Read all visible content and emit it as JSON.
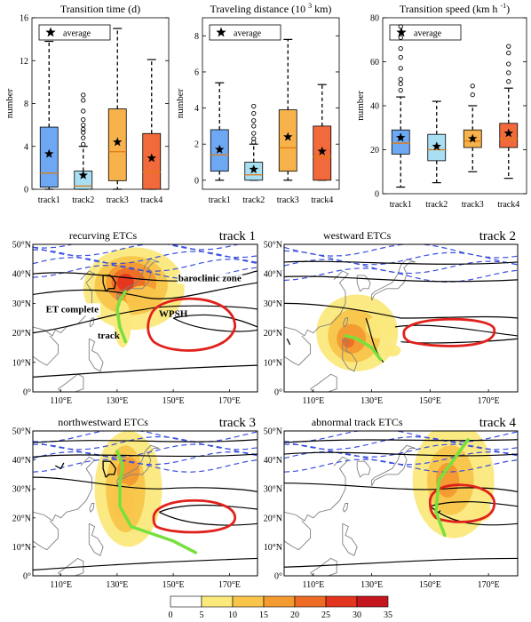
{
  "colors": {
    "track1": "#6ea8f2",
    "track2": "#a8dff2",
    "track3": "#f7b24c",
    "track4": "#f26a3c",
    "median": "#e07a10",
    "whisker": "#000000",
    "contour_black": "#000000",
    "contour_blue": "#3a4fe0",
    "wpsh_red": "#e0211c",
    "track_green": "#78e03c"
  },
  "box_panels": [
    {
      "title": "Transition time (d)",
      "ylabel": "number",
      "legend": "average",
      "yticks": [
        "0",
        "4",
        "8",
        "12",
        "16"
      ],
      "ylim": [
        0,
        16
      ],
      "categories": [
        "track1",
        "track2",
        "track3",
        "track4"
      ],
      "boxes": [
        {
          "min": 0,
          "q1": 0.2,
          "median": 1.5,
          "q3": 5.8,
          "max": 13.8,
          "mean": 3.3,
          "outliers": []
        },
        {
          "min": 0,
          "q1": 0,
          "median": 0.3,
          "q3": 1.7,
          "max": 4.0,
          "mean": 1.3,
          "outliers": [
            4.2,
            4.8,
            5.3,
            5.6,
            6.0,
            6.5,
            7.3,
            8.3,
            8.8
          ]
        },
        {
          "min": 0,
          "q1": 0.8,
          "median": 3.5,
          "q3": 7.5,
          "max": 15.0,
          "mean": 4.4,
          "outliers": []
        },
        {
          "min": 0,
          "q1": 0,
          "median": 1.6,
          "q3": 5.2,
          "max": 12.1,
          "mean": 2.9,
          "outliers": []
        }
      ]
    },
    {
      "title": "Traveling distance (10 3 km)",
      "ylabel": "number",
      "legend": "average",
      "yticks": [
        "0",
        "2",
        "4",
        "6",
        "8"
      ],
      "ylim": [
        -0.5,
        9
      ],
      "categories": [
        "track1",
        "track2",
        "track3",
        "track4"
      ],
      "boxes": [
        {
          "min": 0,
          "q1": 0.5,
          "median": 1.4,
          "q3": 2.8,
          "max": 5.4,
          "mean": 1.7,
          "outliers": []
        },
        {
          "min": 0,
          "q1": 0,
          "median": 0.3,
          "q3": 1.0,
          "max": 2.0,
          "mean": 0.6,
          "outliers": [
            2.1,
            2.3,
            2.6,
            3.0,
            3.3,
            3.7,
            4.1
          ]
        },
        {
          "min": 0,
          "q1": 0.5,
          "median": 1.8,
          "q3": 3.9,
          "max": 7.8,
          "mean": 2.4,
          "outliers": []
        },
        {
          "min": 0,
          "q1": 0,
          "median": 1.3,
          "q3": 3.0,
          "max": 5.3,
          "mean": 1.6,
          "outliers": []
        }
      ]
    },
    {
      "title": "Transition speed (km h -1)",
      "ylabel": "number",
      "legend": "average",
      "yticks": [
        "0",
        "20",
        "40",
        "60",
        "80"
      ],
      "ylim": [
        0,
        80
      ],
      "categories": [
        "track1",
        "track2",
        "track3",
        "track4"
      ],
      "boxes": [
        {
          "min": 3,
          "q1": 18,
          "median": 23,
          "q3": 29,
          "max": 44,
          "mean": 25.5,
          "outliers": [
            47,
            50,
            52,
            57,
            62,
            66,
            71,
            76
          ]
        },
        {
          "min": 5,
          "q1": 15,
          "median": 20,
          "q3": 27,
          "max": 42,
          "mean": 21.5,
          "outliers": []
        },
        {
          "min": 10,
          "q1": 21,
          "median": 24,
          "q3": 29,
          "max": 40,
          "mean": 25.0,
          "outliers": [
            45,
            49
          ]
        },
        {
          "min": 7,
          "q1": 21,
          "median": 25,
          "q3": 32,
          "max": 48,
          "mean": 27.5,
          "outliers": [
            51,
            55,
            59,
            64,
            67
          ]
        }
      ]
    }
  ],
  "maps": [
    {
      "title": "recurving ETCs",
      "track_label": "track 1",
      "annotations": [
        "baroclinic zone",
        "ET complete",
        "WPSH",
        "track"
      ]
    },
    {
      "title": "westward ETCs",
      "track_label": "track 2",
      "annotations": []
    },
    {
      "title": "northwestward ETCs",
      "track_label": "track 3",
      "annotations": []
    },
    {
      "title": "abnormal track ETCs",
      "track_label": "track 4",
      "annotations": []
    }
  ],
  "map_lat_ticks": [
    "50°N",
    "40°N",
    "30°N",
    "20°N",
    "10°N",
    "0°"
  ],
  "map_lon_ticks_left": [
    "110°E",
    "130°E",
    "150°E",
    "170°E"
  ],
  "map_lon_ticks_right": [
    "110°E",
    "130°E",
    "150°E",
    "170°E"
  ],
  "colorbar": {
    "ticks": [
      "0",
      "5",
      "10",
      "15",
      "20",
      "25",
      "30",
      "35"
    ],
    "colors": [
      "#ffffff",
      "#fbe97c",
      "#f8c54a",
      "#f39a30",
      "#ee6b25",
      "#e3341e",
      "#c4161c"
    ]
  }
}
